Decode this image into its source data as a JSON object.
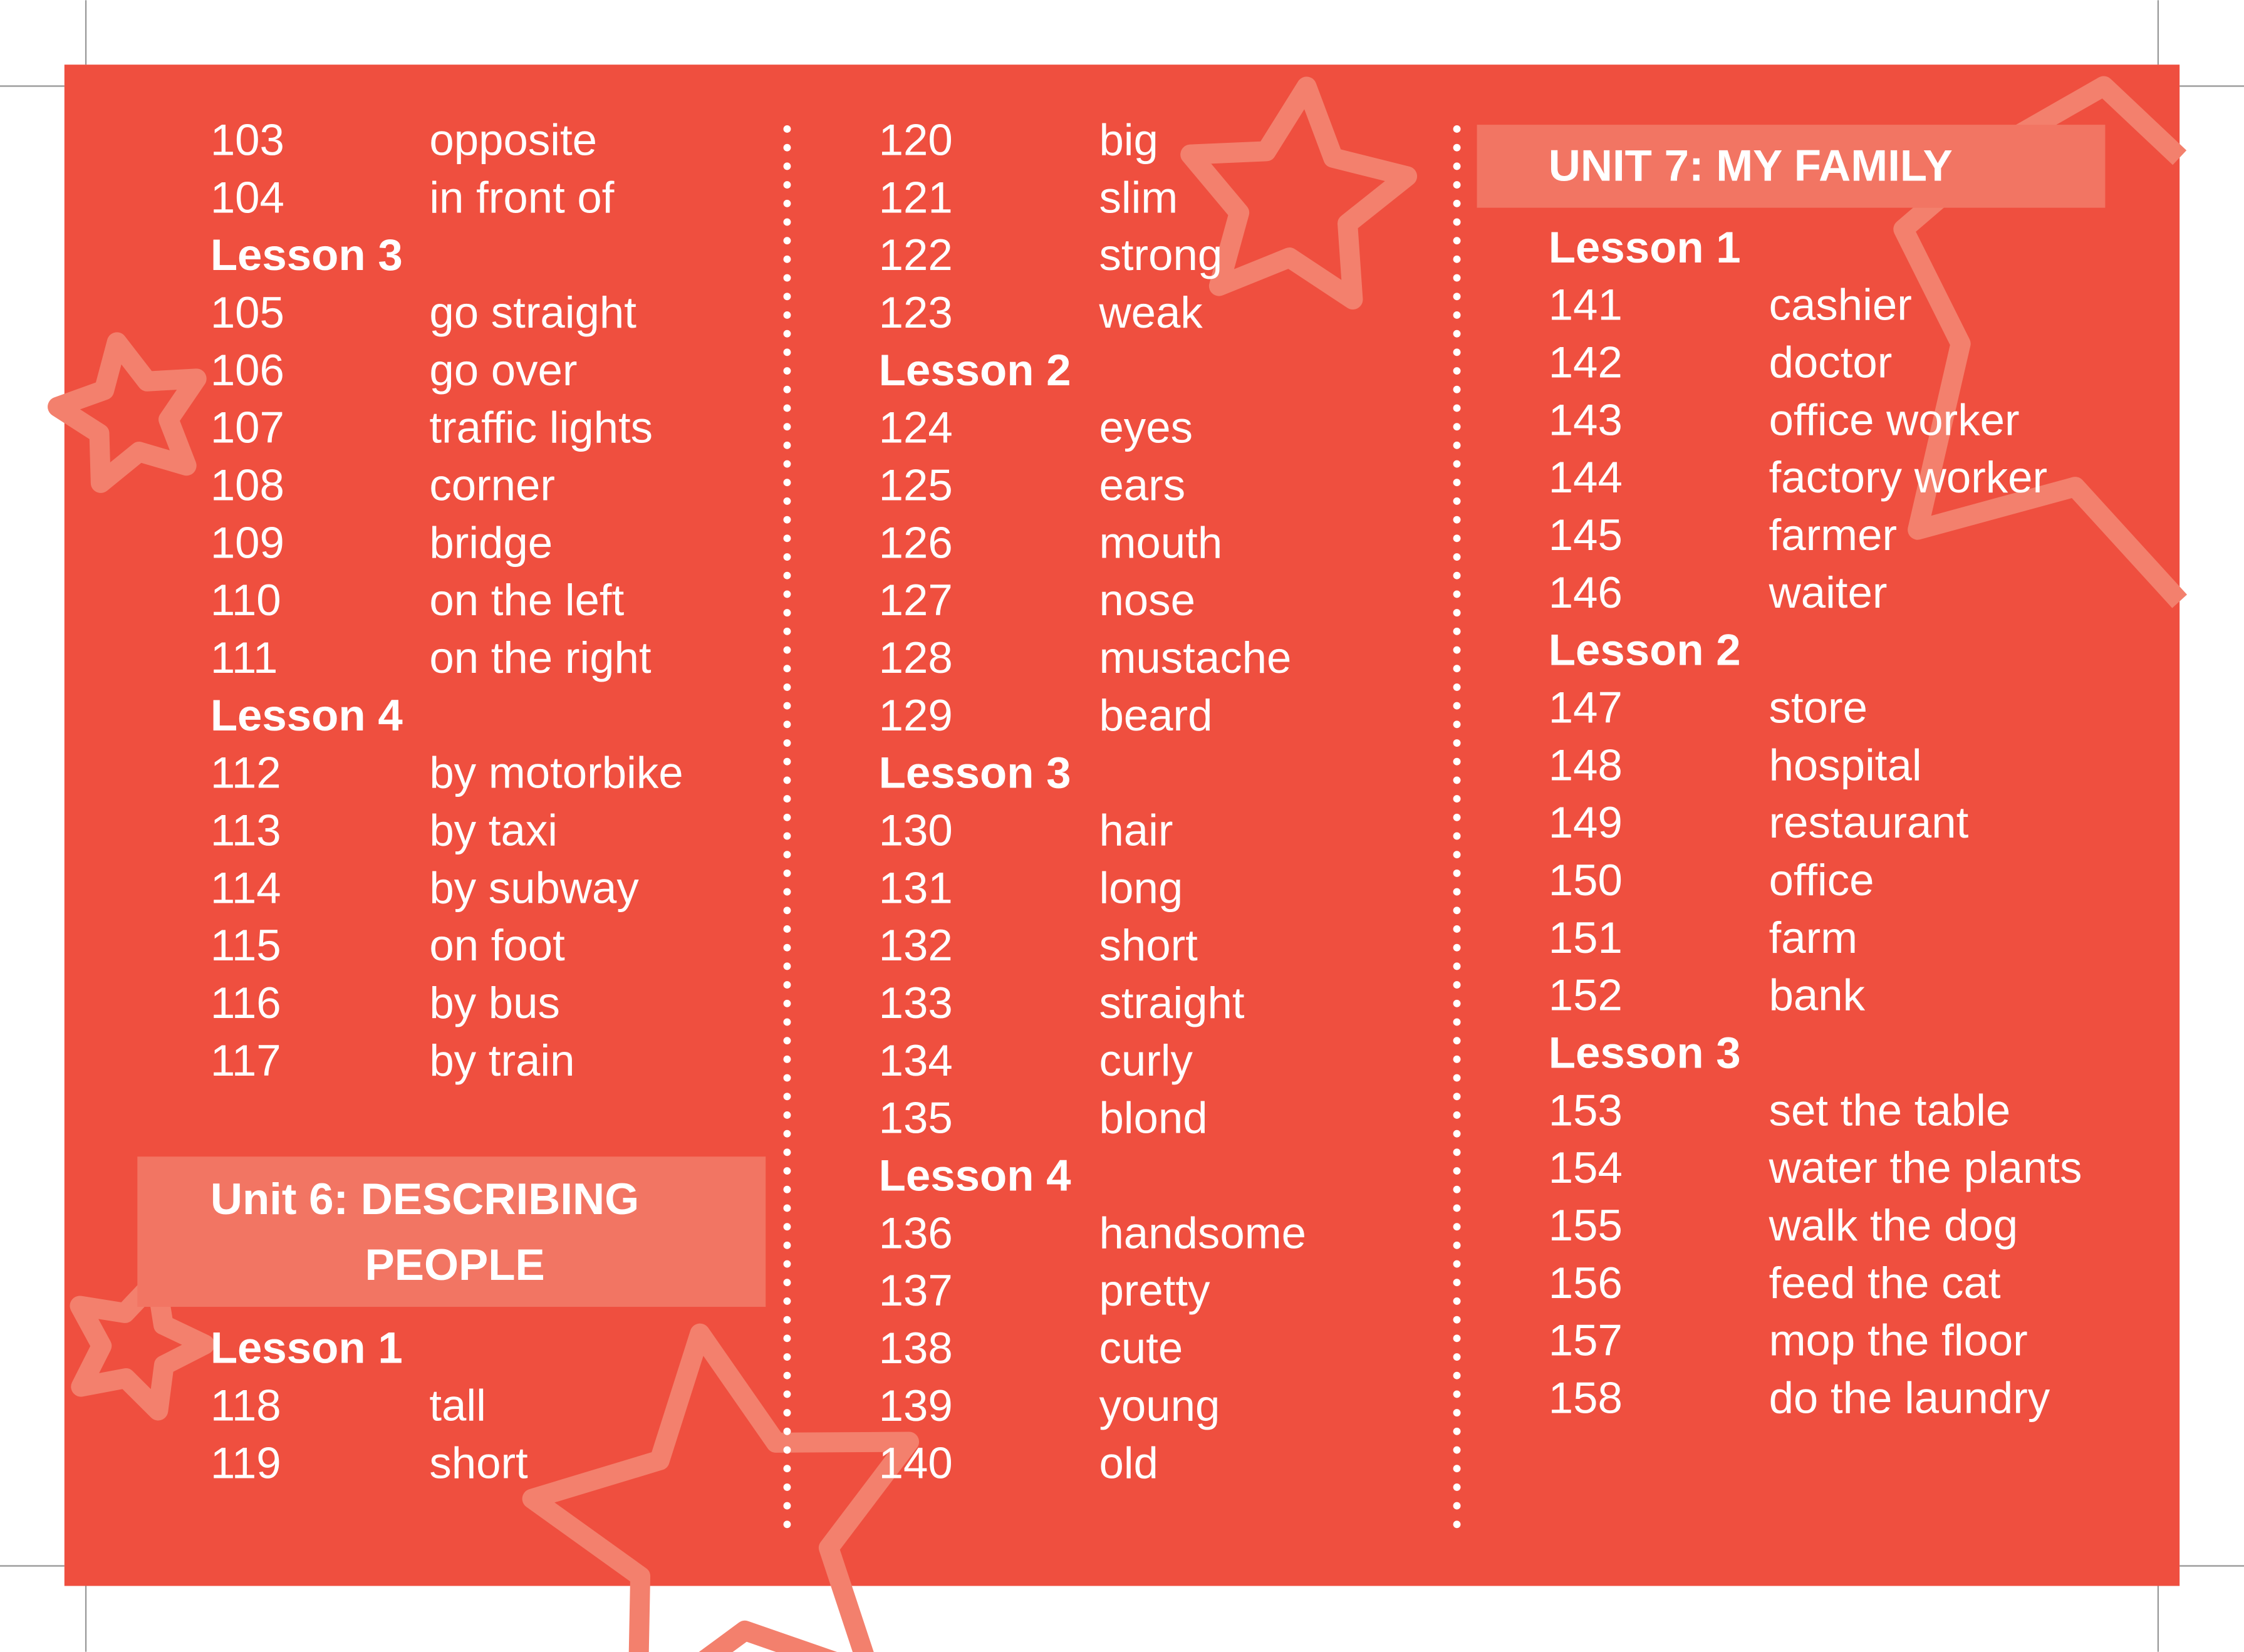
{
  "columns": [
    {
      "blocks": [
        {
          "rows": [
            {
              "number": 103,
              "word": "opposite"
            },
            {
              "number": 104,
              "word": "in front of"
            },
            {
              "lesson": "Lesson 3"
            },
            {
              "number": 105,
              "word": "go straight"
            },
            {
              "number": 106,
              "word": "go over"
            },
            {
              "number": 107,
              "word": "traffic lights"
            },
            {
              "number": 108,
              "word": "corner"
            },
            {
              "number": 109,
              "word": "bridge"
            },
            {
              "number": 110,
              "word": "on the left"
            },
            {
              "number": 111,
              "word": "on the right"
            },
            {
              "lesson": "Lesson 4"
            },
            {
              "number": 112,
              "word": "by motorbike"
            },
            {
              "number": 113,
              "word": "by taxi"
            },
            {
              "number": 114,
              "word": "by subway"
            },
            {
              "number": 115,
              "word": "on foot"
            },
            {
              "number": 116,
              "word": "by bus"
            },
            {
              "number": 117,
              "word": "by train"
            }
          ]
        },
        {
          "title": [
            "Unit 6: DESCRIBING",
            "PEOPLE"
          ],
          "rows": [
            {
              "lesson": "Lesson 1"
            },
            {
              "number": 118,
              "word": "tall"
            },
            {
              "number": 119,
              "word": "short"
            }
          ]
        }
      ]
    },
    {
      "blocks": [
        {
          "rows": [
            {
              "number": 120,
              "word": "big"
            },
            {
              "number": 121,
              "word": "slim"
            },
            {
              "number": 122,
              "word": "strong"
            },
            {
              "number": 123,
              "word": "weak"
            },
            {
              "lesson": "Lesson 2"
            },
            {
              "number": 124,
              "word": "eyes"
            },
            {
              "number": 125,
              "word": "ears"
            },
            {
              "number": 126,
              "word": "mouth"
            },
            {
              "number": 127,
              "word": "nose"
            },
            {
              "number": 128,
              "word": "mustache"
            },
            {
              "number": 129,
              "word": "beard"
            },
            {
              "lesson": "Lesson 3"
            },
            {
              "number": 130,
              "word": "hair"
            },
            {
              "number": 131,
              "word": "long"
            },
            {
              "number": 132,
              "word": "short"
            },
            {
              "number": 133,
              "word": "straight"
            },
            {
              "number": 134,
              "word": "curly"
            },
            {
              "number": 135,
              "word": "blond"
            },
            {
              "lesson": "Lesson 4"
            },
            {
              "number": 136,
              "word": "handsome"
            },
            {
              "number": 137,
              "word": "pretty"
            },
            {
              "number": 138,
              "word": "cute"
            },
            {
              "number": 139,
              "word": "young"
            },
            {
              "number": 140,
              "word": "old"
            }
          ]
        }
      ]
    },
    {
      "blocks": [
        {
          "title": [
            "UNIT 7: MY FAMILY"
          ],
          "rows": [
            {
              "lesson": "Lesson 1"
            },
            {
              "number": 141,
              "word": "cashier"
            },
            {
              "number": 142,
              "word": "doctor"
            },
            {
              "number": 143,
              "word": "office worker"
            },
            {
              "number": 144,
              "word": "factory worker"
            },
            {
              "number": 145,
              "word": "farmer"
            },
            {
              "number": 146,
              "word": "waiter"
            },
            {
              "lesson": "Lesson 2"
            },
            {
              "number": 147,
              "word": "store"
            },
            {
              "number": 148,
              "word": "hospital"
            },
            {
              "number": 149,
              "word": "restaurant"
            },
            {
              "number": 150,
              "word": "office"
            },
            {
              "number": 151,
              "word": "farm"
            },
            {
              "number": 152,
              "word": "bank"
            },
            {
              "lesson": "Lesson 3"
            },
            {
              "number": 153,
              "word": "set the table"
            },
            {
              "number": 154,
              "word": "water the plants"
            },
            {
              "number": 155,
              "word": "walk the dog"
            },
            {
              "number": 156,
              "word": "feed the cat"
            },
            {
              "number": 157,
              "word": "mop the floor"
            },
            {
              "number": 158,
              "word": "do the laundry"
            }
          ]
        }
      ]
    }
  ]
}
